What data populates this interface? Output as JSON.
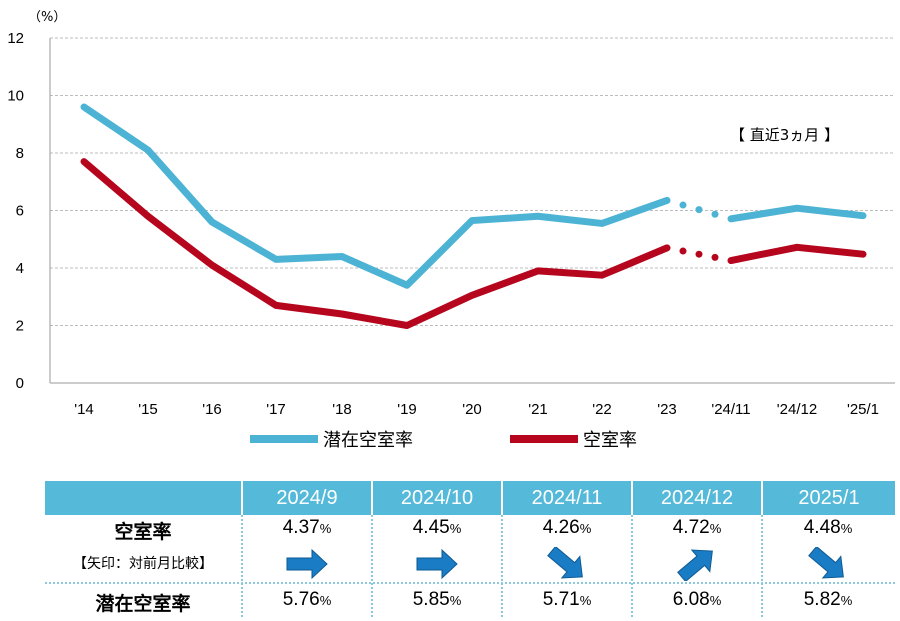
{
  "chart_data": {
    "type": "line",
    "unit_label": "（%）",
    "annotation": "【 直近3ヵ月 】",
    "x": [
      "'14",
      "'15",
      "'16",
      "'17",
      "'18",
      "'19",
      "'20",
      "'21",
      "'22",
      "'23",
      "'24/11",
      "'24/12",
      "'25/1"
    ],
    "y_ticks": [
      "0",
      "2",
      "4",
      "6",
      "8",
      "10",
      "12"
    ],
    "ylim": [
      0,
      12
    ],
    "grid": true,
    "legend_position": "bottom",
    "series": [
      {
        "name": "潜在空室率",
        "color": "#4cb3d4",
        "values": [
          9.6,
          8.1,
          5.6,
          4.3,
          4.4,
          3.4,
          5.65,
          5.8,
          5.55,
          6.35,
          5.71,
          6.08,
          5.82
        ]
      },
      {
        "name": "空室率",
        "color": "#b5061e",
        "values": [
          7.7,
          5.8,
          4.1,
          2.7,
          2.4,
          2.0,
          3.05,
          3.9,
          3.75,
          4.7,
          4.26,
          4.72,
          4.48
        ]
      }
    ]
  },
  "table": {
    "months": [
      "2024/9",
      "2024/10",
      "2024/11",
      "2024/12",
      "2025/1"
    ],
    "vacancy_label": "空室率",
    "arrow_note": "【矢印：対前月比較】",
    "potential_label": "潜在空室率",
    "percent_sign": "%",
    "vacancy": [
      "4.37",
      "4.45",
      "4.26",
      "4.72",
      "4.48"
    ],
    "potential": [
      "5.76",
      "5.85",
      "5.71",
      "6.08",
      "5.82"
    ],
    "arrows": [
      "right",
      "right",
      "down-right",
      "up-right",
      "down-right"
    ],
    "header_color": "#55b9d9",
    "arrow_color": "#1a7cc5"
  }
}
